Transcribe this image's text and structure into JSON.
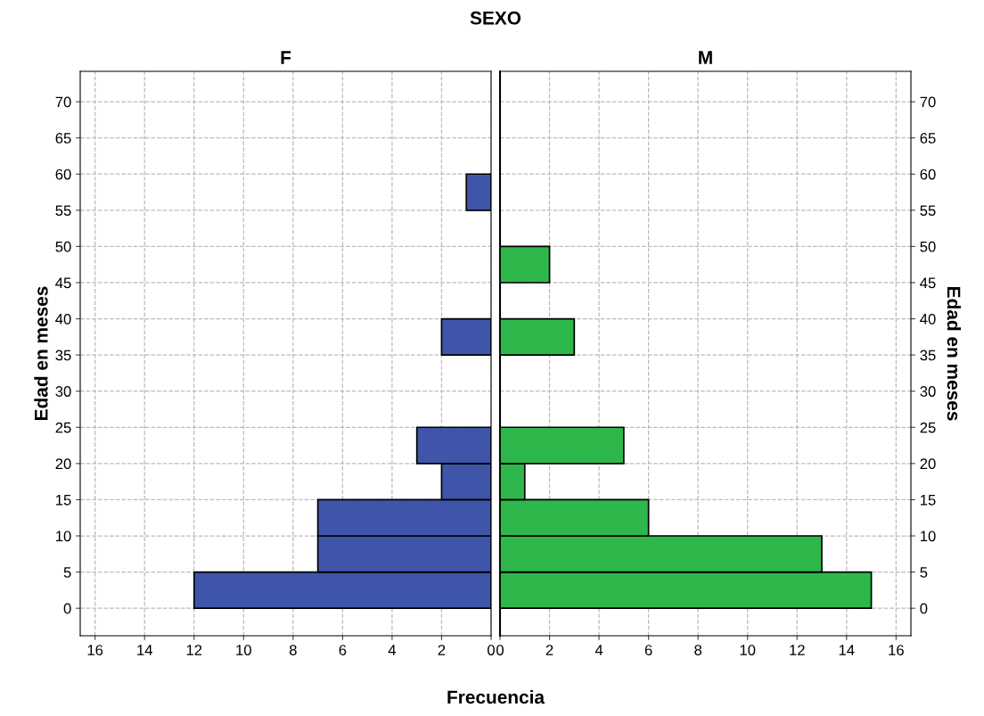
{
  "chart_data": [
    {
      "type": "histogram",
      "orientation": "horizontal",
      "title": "F",
      "ylabel": "Edad en meses",
      "xlabel": "Frecuencia",
      "annotations": [
        "SEXO"
      ],
      "bins": [
        0,
        5,
        10,
        15,
        20,
        25,
        30,
        35,
        40,
        45,
        50,
        55,
        60
      ],
      "values": [
        12,
        7,
        7,
        2,
        3,
        0,
        0,
        2,
        0,
        0,
        0,
        1
      ],
      "color": "#3f55a9",
      "xlim": [
        16.6,
        0
      ],
      "xticks": [
        16,
        14,
        12,
        10,
        8,
        6,
        4,
        2,
        0
      ],
      "ylim": [
        -3.8,
        74.2
      ],
      "yticks": [
        0,
        5,
        10,
        15,
        20,
        25,
        30,
        35,
        40,
        45,
        50,
        55,
        60,
        65,
        70
      ],
      "grid": true,
      "line_style": "dashed"
    },
    {
      "type": "histogram",
      "orientation": "horizontal",
      "title": "M",
      "ylabel": "Edad en meses",
      "bins": [
        0,
        5,
        10,
        15,
        20,
        25,
        30,
        35,
        40,
        45,
        50,
        55,
        60
      ],
      "values": [
        15,
        13,
        6,
        1,
        5,
        0,
        0,
        3,
        0,
        2,
        0,
        0
      ],
      "color": "#2eb74b",
      "xlim": [
        0,
        16.6
      ],
      "xticks": [
        0,
        2,
        4,
        6,
        8,
        10,
        12,
        14,
        16
      ],
      "ylim": [
        -3.8,
        74.2
      ],
      "yticks": [
        0,
        5,
        10,
        15,
        20,
        25,
        30,
        35,
        40,
        45,
        50,
        55,
        60,
        65,
        70
      ],
      "grid": true,
      "line_style": "dashed"
    }
  ]
}
